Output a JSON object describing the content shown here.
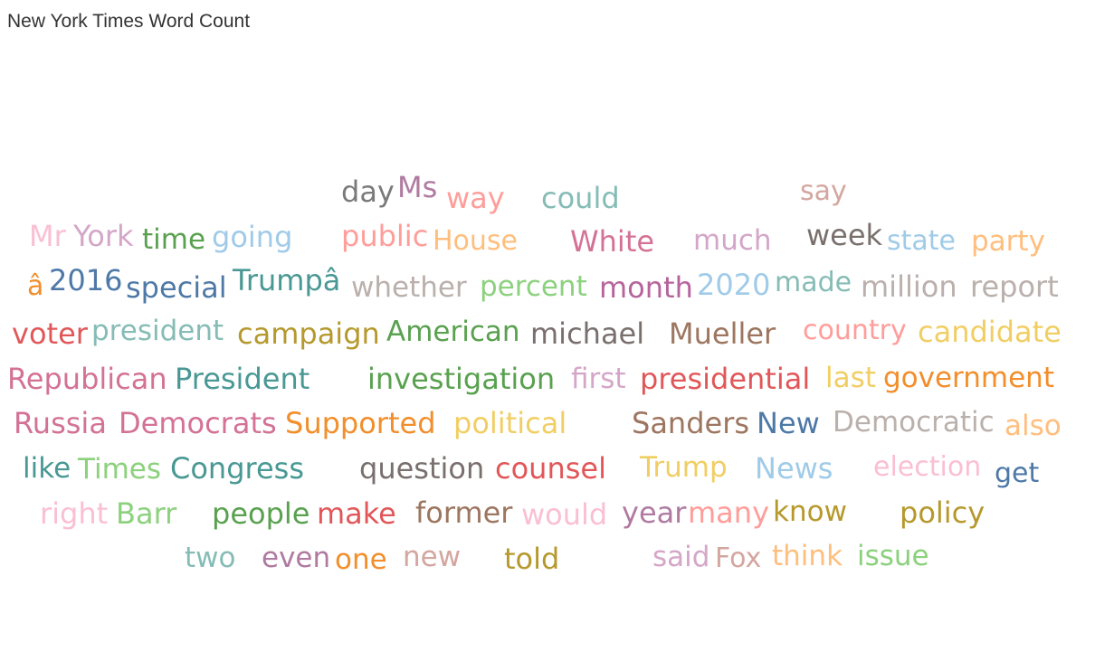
{
  "chart_title": "New York Times Word Count",
  "chart_data": {
    "type": "word_cloud",
    "title": "New York Times Word Count",
    "words": [
      {
        "text": "day",
        "color": "#7a7a7a"
      },
      {
        "text": "Ms",
        "color": "#b07aa1"
      },
      {
        "text": "way",
        "color": "#ff9d9a"
      },
      {
        "text": "could",
        "color": "#86bcb6"
      },
      {
        "text": "say",
        "color": "#d4a6a0"
      },
      {
        "text": "Mr",
        "color": "#fabfd2"
      },
      {
        "text": "York",
        "color": "#d4a6c8"
      },
      {
        "text": "time",
        "color": "#59a14f"
      },
      {
        "text": "going",
        "color": "#a0cbe8"
      },
      {
        "text": "public",
        "color": "#ff9d9a"
      },
      {
        "text": "House",
        "color": "#ffbe7d"
      },
      {
        "text": "White",
        "color": "#d37295"
      },
      {
        "text": "much",
        "color": "#d4a6c8"
      },
      {
        "text": "week",
        "color": "#79706e"
      },
      {
        "text": "state",
        "color": "#a0cbe8"
      },
      {
        "text": "party",
        "color": "#ffbe7d"
      },
      {
        "text": "â",
        "color": "#f28e2b"
      },
      {
        "text": "2016",
        "color": "#4e79a7"
      },
      {
        "text": "special",
        "color": "#4e79a7"
      },
      {
        "text": "Trumpâ",
        "color": "#499894"
      },
      {
        "text": "whether",
        "color": "#bab0ac"
      },
      {
        "text": "percent",
        "color": "#8cd17d"
      },
      {
        "text": "month",
        "color": "#b6649b"
      },
      {
        "text": "2020",
        "color": "#a0cbe8"
      },
      {
        "text": "made",
        "color": "#86bcb6"
      },
      {
        "text": "million",
        "color": "#bab0ac"
      },
      {
        "text": "report",
        "color": "#bab0ac"
      },
      {
        "text": "voter",
        "color": "#e15759"
      },
      {
        "text": "president",
        "color": "#86bcb6"
      },
      {
        "text": "campaign",
        "color": "#b6992d"
      },
      {
        "text": "American",
        "color": "#59a14f"
      },
      {
        "text": "michael",
        "color": "#79706e"
      },
      {
        "text": "Mueller",
        "color": "#9d7660"
      },
      {
        "text": "country",
        "color": "#ff9d9a"
      },
      {
        "text": "candidate",
        "color": "#f1ce63"
      },
      {
        "text": "Republican",
        "color": "#d37295"
      },
      {
        "text": "President",
        "color": "#499894"
      },
      {
        "text": "investigation",
        "color": "#59a14f"
      },
      {
        "text": "first",
        "color": "#d4a6c8"
      },
      {
        "text": "presidential",
        "color": "#e15759"
      },
      {
        "text": "last",
        "color": "#f1ce63"
      },
      {
        "text": "government",
        "color": "#f28e2b"
      },
      {
        "text": "Russia",
        "color": "#d37295"
      },
      {
        "text": "Democrats",
        "color": "#d37295"
      },
      {
        "text": "Supported",
        "color": "#f28e2b"
      },
      {
        "text": "political",
        "color": "#f1ce63"
      },
      {
        "text": "Sanders",
        "color": "#9d7660"
      },
      {
        "text": "New",
        "color": "#4e79a7"
      },
      {
        "text": "Democratic",
        "color": "#bab0ac"
      },
      {
        "text": "also",
        "color": "#ffbe7d"
      },
      {
        "text": "like",
        "color": "#499894"
      },
      {
        "text": "Times",
        "color": "#8cd17d"
      },
      {
        "text": "Congress",
        "color": "#499894"
      },
      {
        "text": "question",
        "color": "#79706e"
      },
      {
        "text": "counsel",
        "color": "#e15759"
      },
      {
        "text": "Trump",
        "color": "#f1ce63"
      },
      {
        "text": "News",
        "color": "#a0cbe8"
      },
      {
        "text": "election",
        "color": "#fabfd2"
      },
      {
        "text": "get",
        "color": "#4e79a7"
      },
      {
        "text": "right",
        "color": "#fabfd2"
      },
      {
        "text": "Barr",
        "color": "#8cd17d"
      },
      {
        "text": "people",
        "color": "#59a14f"
      },
      {
        "text": "make",
        "color": "#e15759"
      },
      {
        "text": "former",
        "color": "#9d7660"
      },
      {
        "text": "would",
        "color": "#fabfd2"
      },
      {
        "text": "year",
        "color": "#b07aa1"
      },
      {
        "text": "many",
        "color": "#ff9d9a"
      },
      {
        "text": "know",
        "color": "#b6992d"
      },
      {
        "text": "policy",
        "color": "#b6992d"
      },
      {
        "text": "two",
        "color": "#86bcb6"
      },
      {
        "text": "even",
        "color": "#b07aa1"
      },
      {
        "text": "one",
        "color": "#f28e2b"
      },
      {
        "text": "new",
        "color": "#d4a6a0"
      },
      {
        "text": "told",
        "color": "#b6992d"
      },
      {
        "text": "said",
        "color": "#d4a6c8"
      },
      {
        "text": "Fox",
        "color": "#d4a6a0"
      },
      {
        "text": "think",
        "color": "#ffbe7d"
      },
      {
        "text": "issue",
        "color": "#8cd17d"
      }
    ]
  }
}
